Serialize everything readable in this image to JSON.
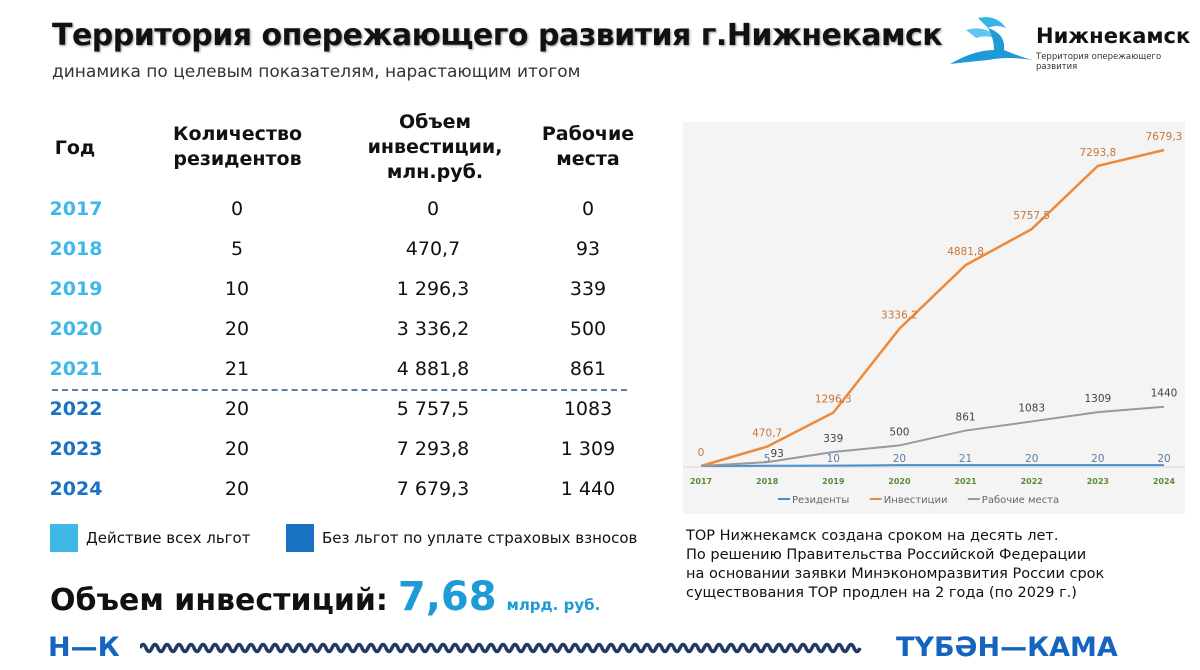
{
  "header": {
    "title": "Территория опережающего развития г.Нижнекамск",
    "subtitle": "динамика по целевым показателям, нарастающим итогом"
  },
  "logo": {
    "name": "Нижнекамск",
    "tagline": "Территория опережающего развития"
  },
  "table": {
    "headers": {
      "year": "Год",
      "residents": "Количество резидентов",
      "investment": "Объем инвестиции, млн.руб.",
      "jobs": "Рабочие места"
    },
    "rows": [
      {
        "year": "2017",
        "residents": "0",
        "investment": "0",
        "jobs": "0",
        "group": "all"
      },
      {
        "year": "2018",
        "residents": "5",
        "investment": "470,7",
        "jobs": "93",
        "group": "all"
      },
      {
        "year": "2019",
        "residents": "10",
        "investment": "1 296,3",
        "jobs": "339",
        "group": "all"
      },
      {
        "year": "2020",
        "residents": "20",
        "investment": "3 336,2",
        "jobs": "500",
        "group": "all"
      },
      {
        "year": "2021",
        "residents": "21",
        "investment": "4 881,8",
        "jobs": "861",
        "group": "all"
      },
      {
        "year": "2022",
        "residents": "20",
        "investment": "5 757,5",
        "jobs": "1083",
        "group": "no"
      },
      {
        "year": "2023",
        "residents": "20",
        "investment": "7 293,8",
        "jobs": "1 309",
        "group": "no"
      },
      {
        "year": "2024",
        "residents": "20",
        "investment": "7 679,3",
        "jobs": "1 440",
        "group": "no"
      }
    ]
  },
  "legend": {
    "all": {
      "label": "Действие всех льгот",
      "color": "#3fb8e6"
    },
    "no": {
      "label": "Без льгот по уплате страховых взносов",
      "color": "#1a73c2"
    }
  },
  "summary": {
    "label": "Объем инвестиций:",
    "value": "7,68",
    "unit": "млрд. руб."
  },
  "note": [
    "ТОР Нижнекамск создана сроком на десять лет.",
    "По решению Правительства Российской Федерации",
    "на основании заявки Минэкономразвития России срок",
    "существования ТОР продлен на 2 года (по 2029 г.)"
  ],
  "footer": {
    "left": "Н—К",
    "right": "ТҮБӘН—КАМА"
  },
  "chart_data": {
    "type": "line",
    "x": [
      "2017",
      "2018",
      "2019",
      "2020",
      "2021",
      "2022",
      "2023",
      "2024"
    ],
    "ylim": [
      0,
      7679.3
    ],
    "legend_position": "bottom",
    "series": [
      {
        "name": "Резиденты",
        "color": "#4a90c8",
        "values": [
          0,
          5,
          10,
          20,
          21,
          20,
          20,
          20
        ],
        "labels": [
          "",
          "5",
          "10",
          "20",
          "21",
          "20",
          "20",
          "20"
        ]
      },
      {
        "name": "Инвестиции",
        "color": "#ed8a3a",
        "values": [
          0,
          470.7,
          1296.3,
          3336.2,
          4881.8,
          5757.5,
          7293.8,
          7679.3
        ],
        "labels": [
          "0",
          "470,7",
          "1296,3",
          "3336,2",
          "4881,8",
          "5757,5",
          "7293,8",
          "7679,3"
        ]
      },
      {
        "name": "Рабочие места",
        "color": "#999999",
        "values": [
          0,
          93,
          339,
          500,
          861,
          1083,
          1309,
          1440
        ],
        "labels": [
          "",
          "93",
          "339",
          "500",
          "861",
          "1083",
          "1309",
          "1440"
        ]
      }
    ]
  }
}
